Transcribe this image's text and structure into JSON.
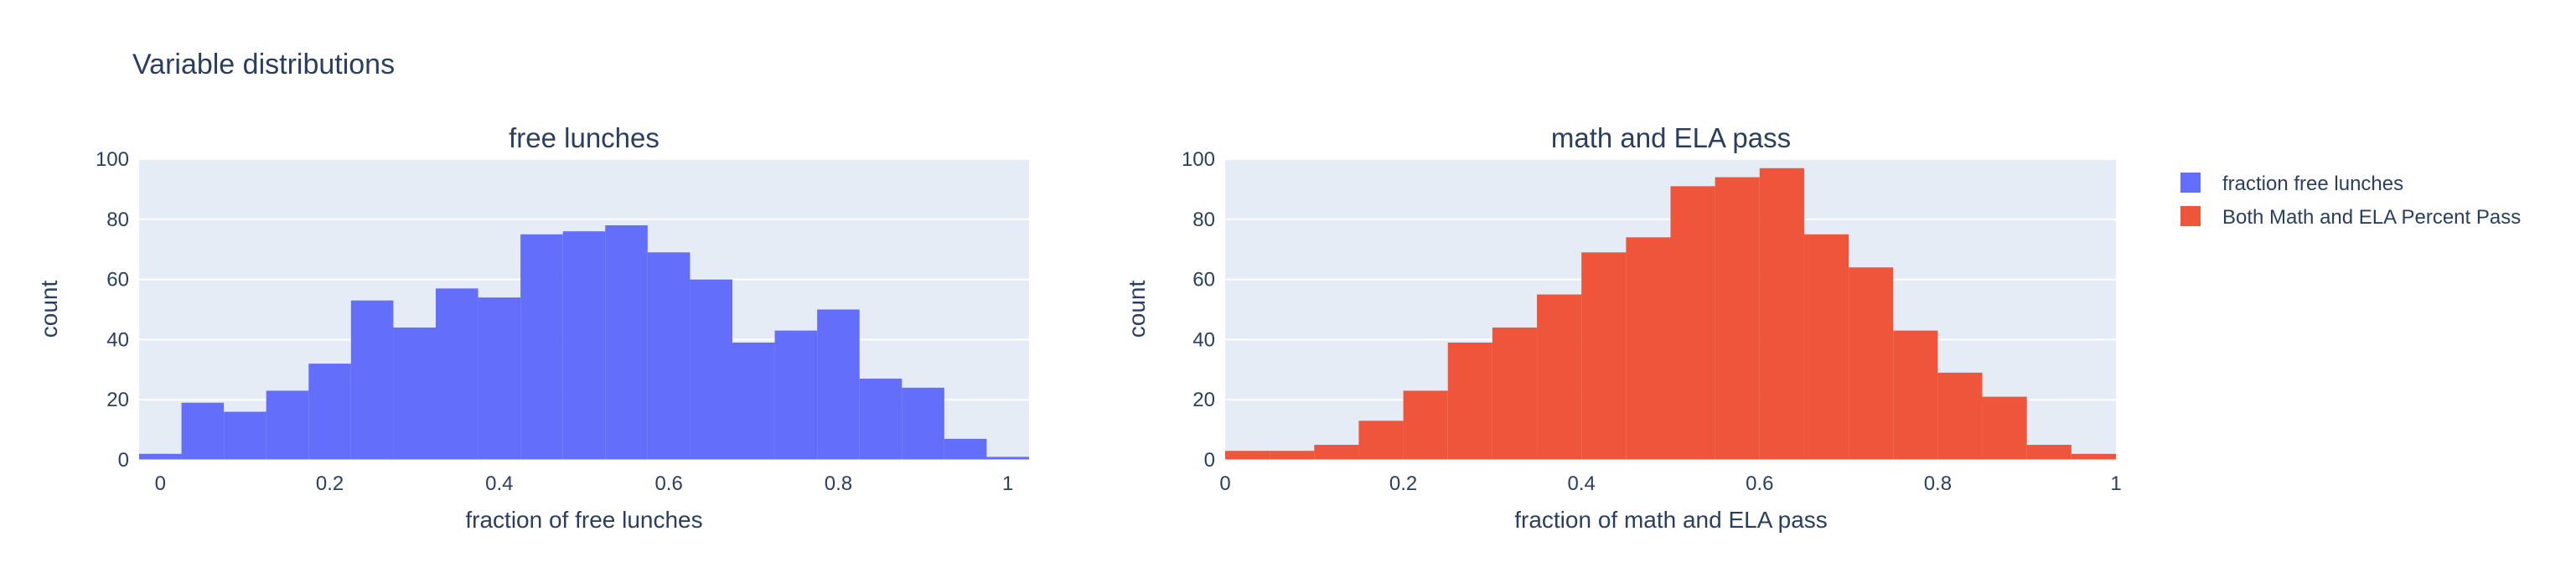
{
  "figure": {
    "title": "Variable distributions"
  },
  "chart_data": [
    {
      "type": "bar",
      "histogram": true,
      "title": "free lunches",
      "xlabel": "fraction of free lunches",
      "ylabel": "count",
      "series_name": "fraction free lunches",
      "color": "#636efa",
      "bin_width": 0.05,
      "bin_starts": [
        -0.025,
        0.025,
        0.075,
        0.125,
        0.175,
        0.225,
        0.275,
        0.325,
        0.375,
        0.425,
        0.475,
        0.525,
        0.575,
        0.625,
        0.675,
        0.725,
        0.775,
        0.825,
        0.875,
        0.925,
        0.975
      ],
      "values": [
        2,
        19,
        16,
        23,
        32,
        53,
        44,
        57,
        54,
        75,
        76,
        78,
        69,
        60,
        39,
        43,
        50,
        27,
        24,
        7,
        1
      ],
      "xlim": [
        -0.025,
        1.025
      ],
      "ylim": [
        0,
        100
      ],
      "xticks": [
        0,
        0.2,
        0.4,
        0.6,
        0.8,
        1
      ],
      "xtick_labels": [
        "0",
        "0.2",
        "0.4",
        "0.6",
        "0.8",
        "1"
      ],
      "yticks": [
        0,
        20,
        40,
        60,
        80,
        100
      ],
      "ytick_labels": [
        "0",
        "20",
        "40",
        "60",
        "80",
        "100"
      ],
      "grid": true
    },
    {
      "type": "bar",
      "histogram": true,
      "title": "math and ELA pass",
      "xlabel": "fraction of math and ELA pass",
      "ylabel": "count",
      "series_name": "Both Math and ELA Percent Pass",
      "color": "#ef553b",
      "bin_width": 0.05,
      "bin_starts": [
        0.0,
        0.05,
        0.1,
        0.15,
        0.2,
        0.25,
        0.3,
        0.35,
        0.4,
        0.45,
        0.5,
        0.55,
        0.6,
        0.65,
        0.7,
        0.75,
        0.8,
        0.85,
        0.9,
        0.95
      ],
      "values": [
        3,
        3,
        5,
        13,
        23,
        39,
        44,
        55,
        69,
        74,
        91,
        94,
        97,
        75,
        64,
        43,
        29,
        21,
        5,
        2
      ],
      "xlim": [
        0,
        1
      ],
      "ylim": [
        0,
        100
      ],
      "xticks": [
        0,
        0.2,
        0.4,
        0.6,
        0.8,
        1
      ],
      "xtick_labels": [
        "0",
        "0.2",
        "0.4",
        "0.6",
        "0.8",
        "1"
      ],
      "yticks": [
        0,
        20,
        40,
        60,
        80,
        100
      ],
      "ytick_labels": [
        "0",
        "20",
        "40",
        "60",
        "80",
        "100"
      ],
      "grid": true
    }
  ],
  "legend": {
    "placement": "right",
    "items": [
      {
        "label": "fraction free lunches",
        "color": "#636efa"
      },
      {
        "label": "Both Math and ELA Percent Pass",
        "color": "#ef553b"
      }
    ]
  }
}
